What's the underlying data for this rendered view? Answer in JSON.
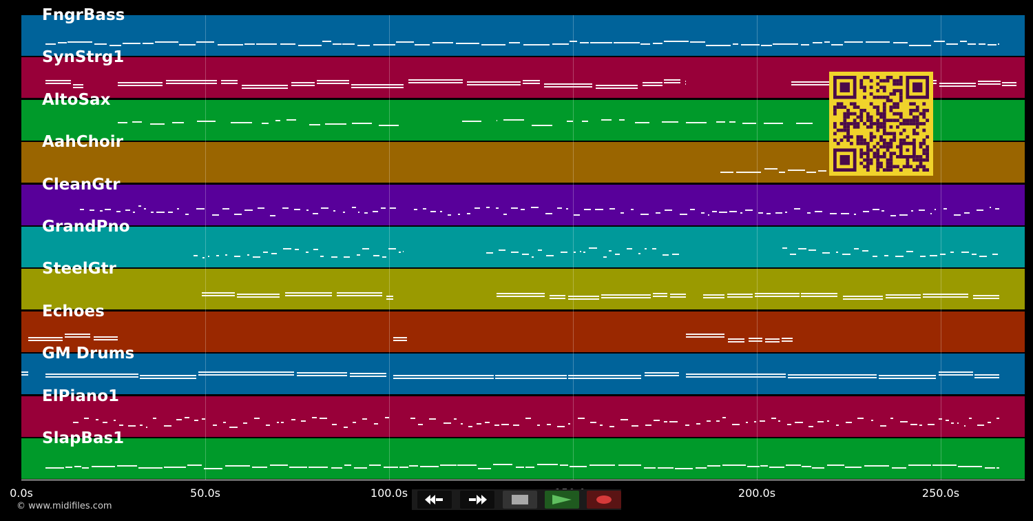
{
  "tracks": [
    {
      "name": "FngrBass",
      "color": "#00639a"
    },
    {
      "name": "SynStrg1",
      "color": "#980039"
    },
    {
      "name": "AltoSax",
      "color": "#009a2a"
    },
    {
      "name": "AahChoir",
      "color": "#9a6500"
    },
    {
      "name": "CleanGtr",
      "color": "#58009a"
    },
    {
      "name": "GrandPno",
      "color": "#00999a"
    },
    {
      "name": "SteelGtr",
      "color": "#9a9a00"
    },
    {
      "name": "Echoes",
      "color": "#9a2800"
    },
    {
      "name": "GM Drums",
      "color": "#00639a"
    },
    {
      "name": "ElPiano1",
      "color": "#980039"
    },
    {
      "name": "SlapBas1",
      "color": "#009a2a"
    }
  ],
  "timeline": {
    "ticks": [
      "0.0s",
      "50.0s",
      "100.0s",
      "150.0s",
      "200.0s",
      "250.0s"
    ]
  },
  "transport": {
    "rewind_icon": "rewind-icon",
    "forward_icon": "fast-forward-icon",
    "stop_icon": "stop-icon",
    "play_icon": "play-icon",
    "record_icon": "record-icon",
    "play_color": "#5fbf5f",
    "record_color": "#d63a3a"
  },
  "footer": {
    "copyright": "© www.midifiles.com"
  },
  "qr": {
    "fg": "#4a0a4a",
    "bg": "#f0d32b"
  }
}
